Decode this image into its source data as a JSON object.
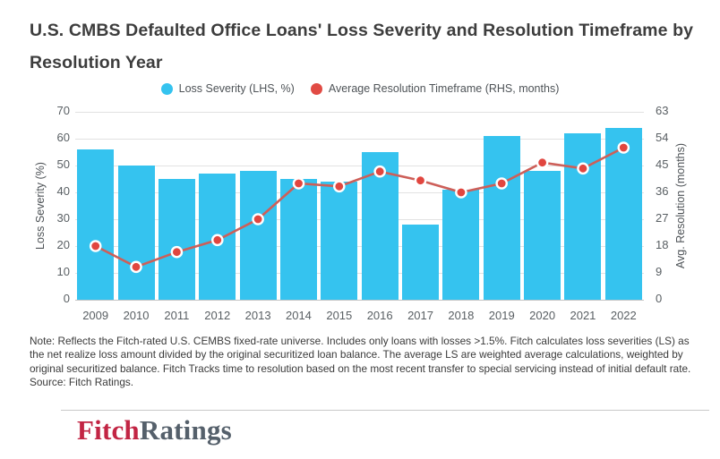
{
  "header": {
    "title": "U.S. CMBS Defaulted Office Loans' Loss Severity and Resolution Timeframe by Resolution Year",
    "title_lines": [
      "U.S. CMBS Defaulted Office Loans' Loss Severity and Resolution Timeframe by",
      "Resolution Year"
    ]
  },
  "legend": {
    "items": [
      {
        "label": "Loss Severity (LHS, %)",
        "color": "#35c3ef"
      },
      {
        "label": "Average Resolution Timeframe (RHS, months)",
        "color": "#e14b44"
      }
    ]
  },
  "chart_data": {
    "type": "bar+line",
    "categories": [
      "2009",
      "2010",
      "2011",
      "2012",
      "2013",
      "2014",
      "2015",
      "2016",
      "2017",
      "2018",
      "2019",
      "2020",
      "2021",
      "2022"
    ],
    "series": [
      {
        "name": "Loss Severity (LHS, %)",
        "type": "bar",
        "axis": "left",
        "color": "#35c3ef",
        "values": [
          56,
          50,
          45,
          47,
          48,
          45,
          44,
          55,
          28,
          41,
          61,
          48,
          62,
          64
        ]
      },
      {
        "name": "Average Resolution Timeframe (RHS, months)",
        "type": "line",
        "axis": "right",
        "color": "#cd5f59",
        "marker_color": "#e1463f",
        "marker_border": "#ffffff",
        "values": [
          18,
          11,
          16,
          20,
          27,
          39,
          38,
          43,
          40,
          36,
          39,
          46,
          44,
          51
        ]
      }
    ],
    "left_axis": {
      "title": "Loss Severity (%)",
      "min": 0,
      "max": 70,
      "step": 10,
      "ticks": [
        70,
        60,
        50,
        40,
        30,
        20,
        10,
        0
      ]
    },
    "right_axis": {
      "title": "Avg. Resolution (months)",
      "min": 0,
      "max": 63,
      "step": 9,
      "ticks": [
        63,
        54,
        45,
        36,
        27,
        18,
        9,
        0
      ]
    },
    "grid": true,
    "legend_position": "top"
  },
  "note": {
    "text": "Note: Reflects the Fitch-rated U.S. CEMBS fixed-rate universe. Includes only loans with losses >1.5%. Fitch calculates loss severities (LS) as the net realize loss amount divided by the original securitized loan balance. The average LS are weighted average calculations, weighted by original securitized balance. Fitch Tracks time to resolution based on the most recent transfer to special servicing instead of initial default rate.",
    "source": "Source: Fitch Ratings."
  },
  "footer": {
    "logo_part1": "Fitch",
    "logo_part2": "Ratings"
  }
}
